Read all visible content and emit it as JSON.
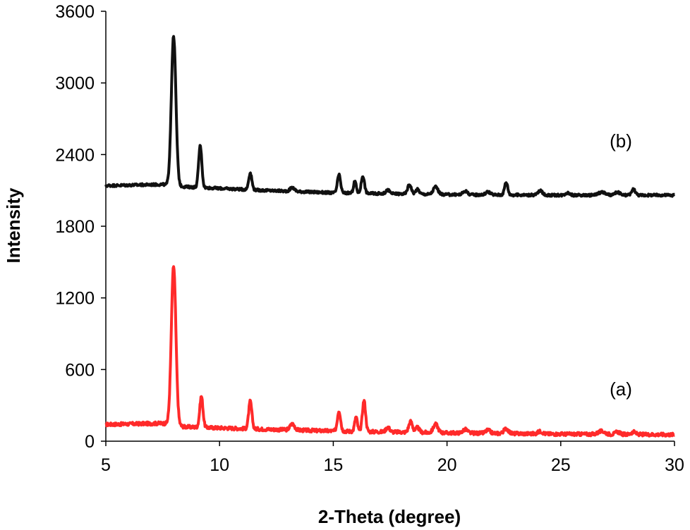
{
  "chart_data": {
    "type": "line",
    "title": "",
    "xlabel": "2-Theta (degree)",
    "ylabel": "Intensity",
    "xlim": [
      5,
      30
    ],
    "ylim": [
      0,
      3600
    ],
    "xticks": [
      5,
      10,
      15,
      20,
      25,
      30
    ],
    "yticks": [
      0,
      600,
      1200,
      1800,
      2400,
      3000,
      3600
    ],
    "grid": false,
    "legend": "none",
    "series": [
      {
        "name": "(a)",
        "color": "#ff2a2a",
        "baseline": [
          [
            5,
            140
          ],
          [
            7.5,
            150
          ],
          [
            8.5,
            120
          ],
          [
            12,
            100
          ],
          [
            15,
            85
          ],
          [
            20,
            70
          ],
          [
            25,
            60
          ],
          [
            30,
            55
          ]
        ],
        "peaks": [
          [
            7.98,
            1330,
            0.1
          ],
          [
            9.2,
            260,
            0.07
          ],
          [
            11.35,
            230,
            0.07
          ],
          [
            13.2,
            50,
            0.1
          ],
          [
            15.25,
            170,
            0.07
          ],
          [
            16.0,
            120,
            0.06
          ],
          [
            16.35,
            260,
            0.07
          ],
          [
            17.4,
            40,
            0.08
          ],
          [
            18.4,
            90,
            0.08
          ],
          [
            18.7,
            40,
            0.08
          ],
          [
            19.5,
            70,
            0.1
          ],
          [
            20.8,
            30,
            0.1
          ],
          [
            21.8,
            25,
            0.1
          ],
          [
            22.6,
            40,
            0.1
          ],
          [
            24.1,
            20,
            0.1
          ],
          [
            26.8,
            25,
            0.15
          ],
          [
            27.5,
            20,
            0.1
          ],
          [
            28.2,
            20,
            0.1
          ]
        ],
        "noise": 14
      },
      {
        "name": "(b)",
        "color": "#111111",
        "baseline": [
          [
            5,
            2140
          ],
          [
            7.5,
            2150
          ],
          [
            8.5,
            2130
          ],
          [
            12,
            2100
          ],
          [
            15,
            2080
          ],
          [
            20,
            2065
          ],
          [
            25,
            2060
          ],
          [
            30,
            2060
          ]
        ],
        "peaks": [
          [
            7.98,
            1250,
            0.1
          ],
          [
            9.15,
            350,
            0.07
          ],
          [
            11.35,
            140,
            0.07
          ],
          [
            13.2,
            30,
            0.1
          ],
          [
            15.25,
            150,
            0.07
          ],
          [
            15.95,
            100,
            0.06
          ],
          [
            16.3,
            145,
            0.07
          ],
          [
            17.4,
            30,
            0.08
          ],
          [
            18.35,
            80,
            0.08
          ],
          [
            18.7,
            40,
            0.08
          ],
          [
            19.5,
            65,
            0.1
          ],
          [
            20.8,
            30,
            0.1
          ],
          [
            21.8,
            25,
            0.1
          ],
          [
            22.6,
            105,
            0.07
          ],
          [
            24.1,
            35,
            0.1
          ],
          [
            25.3,
            20,
            0.1
          ],
          [
            26.8,
            25,
            0.15
          ],
          [
            27.5,
            25,
            0.1
          ],
          [
            28.2,
            50,
            0.08
          ]
        ],
        "noise": 10
      }
    ]
  }
}
